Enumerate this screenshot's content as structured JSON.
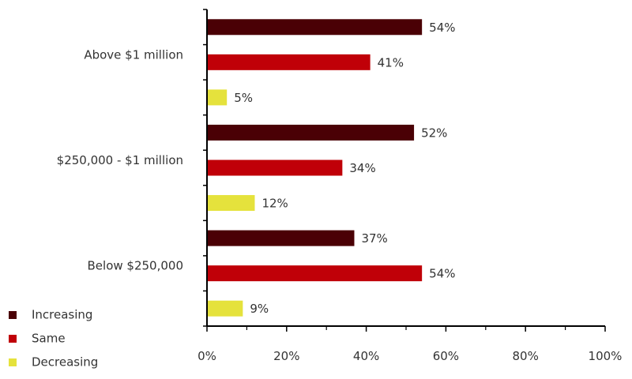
{
  "chart_data": {
    "type": "bar",
    "orientation": "horizontal",
    "title": "",
    "xlabel": "",
    "ylabel": "",
    "categories": [
      "Above $1 million",
      "$250,000 - $1 million",
      "Below $250,000"
    ],
    "series": [
      {
        "name": "Increasing",
        "values": [
          54,
          52,
          37
        ],
        "color": "#4a0005"
      },
      {
        "name": "Same",
        "values": [
          41,
          34,
          54
        ],
        "color": "#c00008"
      },
      {
        "name": "Decreasing",
        "values": [
          5,
          12,
          9
        ],
        "color": "#e5e23c"
      }
    ],
    "value_suffix": "%",
    "xlim": [
      0,
      100
    ],
    "xticks": [
      0,
      20,
      40,
      60,
      80,
      100
    ],
    "xtick_labels": [
      "0%",
      "20%",
      "40%",
      "60%",
      "80%",
      "100%"
    ],
    "grid": false,
    "legend_position": "bottom-left"
  }
}
